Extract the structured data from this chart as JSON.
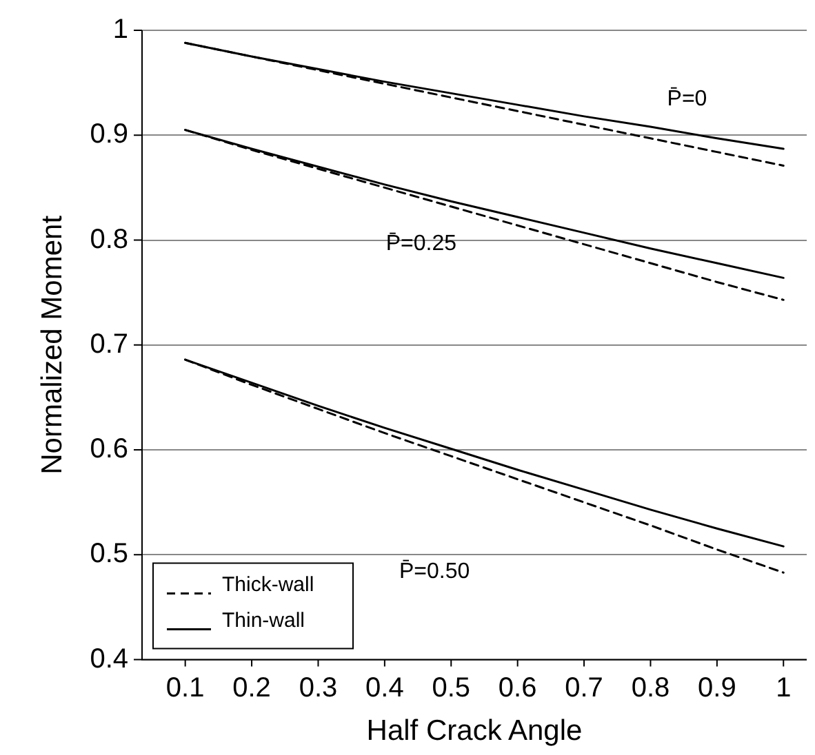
{
  "chart_data": {
    "type": "line",
    "xlabel": "Half Crack Angle",
    "ylabel": "Normalized Moment",
    "x": [
      0.1,
      0.2,
      0.3,
      0.4,
      0.5,
      0.6,
      0.7,
      0.8,
      0.9,
      1
    ],
    "series": [
      {
        "name": "Thick-wall",
        "color": "#000000",
        "line_style": "dashed",
        "values": [
          0.988,
          0.975,
          0.962,
          0.949,
          0.936,
          0.923,
          0.91,
          0.897,
          0.884,
          0.871
        ]
      },
      {
        "name": "Thin-wall",
        "color": "#000000",
        "line_style": "solid",
        "values": [
          0.988,
          0.975,
          0.963,
          0.951,
          0.94,
          0.929,
          0.918,
          0.908,
          0.897,
          0.887
        ]
      },
      {
        "color": "#000000",
        "line_style": "dashed",
        "values": [
          0.905,
          0.886,
          0.868,
          0.85,
          0.832,
          0.814,
          0.796,
          0.778,
          0.76,
          0.743
        ]
      },
      {
        "color": "#000000",
        "line_style": "solid",
        "values": [
          0.905,
          0.887,
          0.87,
          0.853,
          0.837,
          0.822,
          0.807,
          0.792,
          0.778,
          0.764
        ]
      },
      {
        "color": "#000000",
        "line_style": "dashed",
        "values": [
          0.686,
          0.662,
          0.639,
          0.616,
          0.594,
          0.572,
          0.55,
          0.528,
          0.505,
          0.483
        ]
      },
      {
        "color": "#000000",
        "line_style": "solid",
        "values": [
          0.686,
          0.664,
          0.642,
          0.621,
          0.601,
          0.581,
          0.562,
          0.543,
          0.525,
          0.508
        ]
      }
    ],
    "xlim": [
      0.035,
      1.035
    ],
    "xticks": [
      0.1,
      0.2,
      0.3,
      0.4,
      0.5,
      0.6,
      0.7,
      0.8,
      0.9,
      1
    ],
    "ylim": [
      0.4,
      1
    ],
    "yticks": [
      0.4,
      0.5,
      0.6,
      0.7,
      0.8,
      0.9,
      1
    ],
    "grid": "y",
    "legend": "bottom left",
    "marker": "none",
    "annotations": [
      "P̄=0",
      "P̄=0.25",
      "P̄=0.50"
    ]
  }
}
